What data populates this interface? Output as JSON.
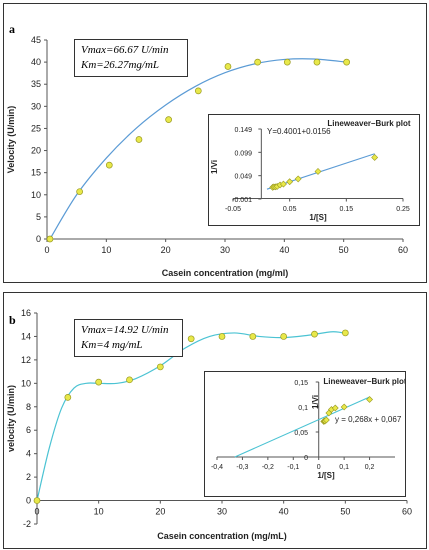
{
  "chart_data": [
    {
      "type": "scatter",
      "panel": "a",
      "xlabel": "Casein concentration (mg/ml)",
      "ylabel": "Velocity (U/min)",
      "xlim": [
        0,
        60
      ],
      "ylim": [
        0,
        45
      ],
      "xticks": [
        0,
        10,
        20,
        30,
        40,
        50,
        60
      ],
      "yticks": [
        0,
        5,
        10,
        15,
        20,
        25,
        30,
        35,
        40,
        45
      ],
      "points": [
        [
          0.5,
          0
        ],
        [
          5.5,
          10.7
        ],
        [
          10.5,
          16.7
        ],
        [
          15.5,
          22.5
        ],
        [
          20.5,
          27
        ],
        [
          25.5,
          33.5
        ],
        [
          30.5,
          39
        ],
        [
          35.5,
          40
        ],
        [
          40.5,
          40
        ],
        [
          45.5,
          40
        ],
        [
          50.5,
          40
        ]
      ],
      "fit": [
        [
          0.5,
          0
        ],
        [
          5,
          10
        ],
        [
          10,
          18.3
        ],
        [
          15,
          25
        ],
        [
          20,
          30.3
        ],
        [
          25,
          34.5
        ],
        [
          30,
          37.6
        ],
        [
          35,
          39.6
        ],
        [
          40,
          40.6
        ],
        [
          45,
          40.7
        ],
        [
          50.5,
          40
        ]
      ],
      "point_color": "#e8e84a",
      "line_color": "#5b9bd5",
      "note": [
        "Vmax=66.67 U/min",
        "Km=26.27mg/mL"
      ],
      "inset": {
        "title": "Lineweaver–Burk plot",
        "equation": "Y=0.4001+0.0156",
        "xlabel": "1/[S]",
        "ylabel": "1/Vi",
        "xlim": [
          -0.05,
          0.25
        ],
        "ylim": [
          -0.001,
          0.149
        ],
        "xticks": [
          -0.05,
          0.05,
          0.15,
          0.25
        ],
        "yticks": [
          -0.001,
          0.049,
          0.099,
          0.149
        ],
        "xtick_labels": [
          "-0.05",
          "0.05",
          "0.15",
          "0.25"
        ],
        "ytick_labels": [
          "-0.001",
          "0.049",
          "0.099",
          "0.149"
        ],
        "points": [
          [
            0.02,
            0.024
          ],
          [
            0.022,
            0.025
          ],
          [
            0.025,
            0.025
          ],
          [
            0.028,
            0.026
          ],
          [
            0.033,
            0.029
          ],
          [
            0.039,
            0.031
          ],
          [
            0.05,
            0.036
          ],
          [
            0.065,
            0.042
          ],
          [
            0.1,
            0.058
          ],
          [
            0.2,
            0.088
          ]
        ],
        "fit": [
          [
            0.01,
            0.02
          ],
          [
            0.2,
            0.096
          ]
        ],
        "point_color": "#e8e84a",
        "line_color": "#5b9bd5"
      }
    },
    {
      "type": "scatter",
      "panel": "b",
      "xlabel": "Casein concentration (mg/mL)",
      "ylabel": "velocity (U/min)",
      "xlim": [
        0,
        60
      ],
      "ylim": [
        -2,
        16
      ],
      "xticks": [
        0,
        10,
        20,
        30,
        40,
        50,
        60
      ],
      "yticks": [
        -2,
        0,
        2,
        4,
        6,
        8,
        10,
        12,
        14,
        16
      ],
      "points": [
        [
          0,
          0
        ],
        [
          5,
          8.8
        ],
        [
          10,
          10.1
        ],
        [
          15,
          10.3
        ],
        [
          20,
          11.4
        ],
        [
          25,
          13.8
        ],
        [
          30,
          14
        ],
        [
          35,
          14
        ],
        [
          40,
          14
        ],
        [
          45,
          14.2
        ],
        [
          50,
          14.3
        ]
      ],
      "fit": [
        [
          0,
          0
        ],
        [
          2,
          4.5
        ],
        [
          4,
          7.9
        ],
        [
          6,
          9.6
        ],
        [
          8,
          10
        ],
        [
          10,
          10
        ],
        [
          13,
          10
        ],
        [
          16,
          10.4
        ],
        [
          20,
          11.5
        ],
        [
          24,
          13
        ],
        [
          28,
          14
        ],
        [
          32,
          14.3
        ],
        [
          36,
          14
        ],
        [
          40,
          13.9
        ],
        [
          44,
          14.1
        ],
        [
          48,
          14.4
        ],
        [
          50.5,
          14.2
        ]
      ],
      "point_color": "#e8e84a",
      "line_color": "#4bc3d3",
      "note": [
        "Vmax=14.92 U/min",
        "Km=4 mg/mL"
      ],
      "inset": {
        "title": "Lineweaver–Burk plot",
        "equation": "y = 0,268x + 0,067",
        "xlabel": "1/[S]",
        "ylabel": "1/Vi",
        "xlim": [
          -0.4,
          0.3
        ],
        "ylim": [
          0,
          0.15
        ],
        "xticks": [
          -0.4,
          -0.3,
          -0.2,
          -0.1,
          0,
          0.1,
          0.2
        ],
        "yticks": [
          0,
          0.05,
          0.1,
          0.15
        ],
        "xtick_labels": [
          "-0,4",
          "-0,3",
          "-0,2",
          "-0,1",
          "0",
          "0,1",
          "0,2"
        ],
        "ytick_labels": [
          "0",
          "0,05",
          "0,1",
          "0,15"
        ],
        "points": [
          [
            0.02,
            0.071
          ],
          [
            0.022,
            0.072
          ],
          [
            0.025,
            0.072
          ],
          [
            0.03,
            0.074
          ],
          [
            0.04,
            0.088
          ],
          [
            0.05,
            0.095
          ],
          [
            0.065,
            0.098
          ],
          [
            0.1,
            0.1
          ],
          [
            0.2,
            0.115
          ]
        ],
        "fit": [
          [
            -0.33,
            0
          ],
          [
            0.2,
            0.12
          ]
        ],
        "point_color": "#e8e84a",
        "line_color": "#4bc3d3"
      }
    }
  ],
  "labels": {
    "panel_a": "a",
    "panel_b": "b"
  }
}
